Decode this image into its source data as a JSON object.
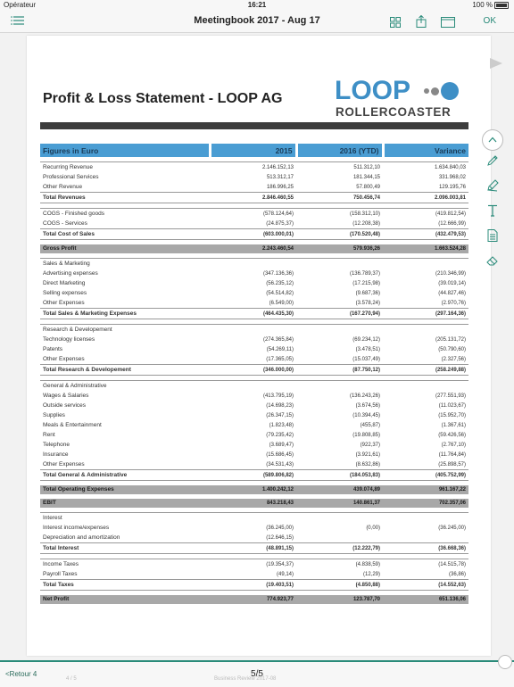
{
  "status": {
    "carrier": "Opérateur",
    "time": "16:21",
    "battery": "100 %"
  },
  "nav": {
    "title": "Meetingbook 2017 - Aug 17",
    "ok": "OK"
  },
  "doc": {
    "title": "Profit & Loss Statement - LOOP AG",
    "logo_loop": "LOOP",
    "logo_sub": "ROLLERCOASTER",
    "columns": [
      "Figures in Euro",
      "2015",
      "2016 (YTD)",
      "Variance"
    ],
    "rows": [
      {
        "type": "spacer"
      },
      {
        "type": "first",
        "cells": [
          "Recurring Revenue",
          "2.146.152,13",
          "511.312,10",
          "1.634.840,03"
        ]
      },
      {
        "type": "row",
        "cells": [
          "Professional Services",
          "513.312,17",
          "181.344,15",
          "331.968,02"
        ]
      },
      {
        "type": "row",
        "cells": [
          "Other Revenue",
          "186.996,25",
          "57.800,49",
          "129.195,76"
        ]
      },
      {
        "type": "total",
        "cells": [
          "Total Revenues",
          "2.846.460,55",
          "750.456,74",
          "2.096.003,81"
        ]
      },
      {
        "type": "spacer"
      },
      {
        "type": "first",
        "cells": [
          "COGS - Finished goods",
          "(578.124,64)",
          "(158.312,10)",
          "(419.812,54)"
        ]
      },
      {
        "type": "row",
        "cells": [
          "COGS - Services",
          "(24.875,37)",
          "(12.208,38)",
          "(12.666,99)"
        ]
      },
      {
        "type": "total",
        "cells": [
          "Total Cost of Sales",
          "(603.000,01)",
          "(170.520,48)",
          "(432.479,53)"
        ]
      },
      {
        "type": "spacer"
      },
      {
        "type": "highlight",
        "cells": [
          "Gross Profit",
          "2.243.460,54",
          "579.936,26",
          "1.663.524,28"
        ]
      },
      {
        "type": "spacer"
      },
      {
        "type": "first",
        "cells": [
          "Sales & Marketing",
          "",
          "",
          ""
        ]
      },
      {
        "type": "row",
        "cells": [
          "Advertising expenses",
          "(347.136,36)",
          "(136.789,37)",
          "(210.346,99)"
        ]
      },
      {
        "type": "row",
        "cells": [
          "Direct Marketing",
          "(56.235,12)",
          "(17.215,98)",
          "(39.019,14)"
        ]
      },
      {
        "type": "row",
        "cells": [
          "Selling expenses",
          "(54.514,82)",
          "(9.687,36)",
          "(44.827,46)"
        ]
      },
      {
        "type": "row",
        "cells": [
          "Other Expenses",
          "(6.549,00)",
          "(3.578,24)",
          "(2.970,76)"
        ]
      },
      {
        "type": "total",
        "cells": [
          "Total Sales & Marketing Expenses",
          "(464.435,30)",
          "(167.270,94)",
          "(297.164,36)"
        ]
      },
      {
        "type": "spacer"
      },
      {
        "type": "first",
        "cells": [
          "Research & Developement",
          "",
          "",
          ""
        ]
      },
      {
        "type": "row",
        "cells": [
          "Technology licenses",
          "(274.365,84)",
          "(69.234,12)",
          "(205.131,72)"
        ]
      },
      {
        "type": "row",
        "cells": [
          "Patents",
          "(54.269,11)",
          "(3.478,51)",
          "(50.790,60)"
        ]
      },
      {
        "type": "row",
        "cells": [
          "Other Expenses",
          "(17.365,05)",
          "(15.037,49)",
          "(2.327,56)"
        ]
      },
      {
        "type": "total",
        "cells": [
          "Total Research & Developement",
          "(346.000,00)",
          "(87.750,12)",
          "(258.249,88)"
        ]
      },
      {
        "type": "spacer"
      },
      {
        "type": "first",
        "cells": [
          "General & Administrative",
          "",
          "",
          ""
        ]
      },
      {
        "type": "row",
        "cells": [
          "Wages & Salaries",
          "(413.795,19)",
          "(136.243,26)",
          "(277.551,93)"
        ]
      },
      {
        "type": "row",
        "cells": [
          "Outside services",
          "(14.698,23)",
          "(3.674,56)",
          "(11.023,67)"
        ]
      },
      {
        "type": "row",
        "cells": [
          "Supplies",
          "(26.347,15)",
          "(10.394,45)",
          "(15.952,70)"
        ]
      },
      {
        "type": "row",
        "cells": [
          "Meals & Entertainment",
          "(1.823,48)",
          "(455,87)",
          "(1.367,61)"
        ]
      },
      {
        "type": "row",
        "cells": [
          "Rent",
          "(79.235,42)",
          "(19.808,85)",
          "(59.426,56)"
        ]
      },
      {
        "type": "row",
        "cells": [
          "Telephone",
          "(3.689,47)",
          "(922,37)",
          "(2.767,10)"
        ]
      },
      {
        "type": "row",
        "cells": [
          "Insurance",
          "(15.686,45)",
          "(3.921,61)",
          "(11.764,84)"
        ]
      },
      {
        "type": "row",
        "cells": [
          "Other Expenses",
          "(34.531,43)",
          "(8.632,86)",
          "(25.898,57)"
        ]
      },
      {
        "type": "total",
        "cells": [
          "Total General & Administrative",
          "(589.806,82)",
          "(184.053,83)",
          "(405.752,99)"
        ]
      },
      {
        "type": "spacer"
      },
      {
        "type": "highlight",
        "cells": [
          "Total Operating Expenses",
          "1.400.242,12",
          "439.074,89",
          "961.167,22"
        ]
      },
      {
        "type": "spacer"
      },
      {
        "type": "highlight",
        "cells": [
          "EBIT",
          "843.218,43",
          "140.861,37",
          "702.357,06"
        ]
      },
      {
        "type": "spacer"
      },
      {
        "type": "first",
        "cells": [
          "Interest",
          "",
          "",
          ""
        ]
      },
      {
        "type": "row",
        "cells": [
          "Interest income/expenses",
          "(36.245,00)",
          "(0,00)",
          "(36.245,00)"
        ]
      },
      {
        "type": "row",
        "cells": [
          "Depreciation and amortization",
          "(12.646,15)",
          "",
          ""
        ]
      },
      {
        "type": "total",
        "cells": [
          "Total Interest",
          "(48.891,15)",
          "(12.222,79)",
          "(36.668,36)"
        ]
      },
      {
        "type": "spacer"
      },
      {
        "type": "first",
        "cells": [
          "Income Taxes",
          "(19.354,37)",
          "(4.838,59)",
          "(14.515,78)"
        ]
      },
      {
        "type": "row",
        "cells": [
          "Payroll Taxes",
          "(49,14)",
          "(12,29)",
          "(36,86)"
        ]
      },
      {
        "type": "total",
        "cells": [
          "Total Taxes",
          "(19.403,51)",
          "(4.850,88)",
          "(14.552,63)"
        ]
      },
      {
        "type": "spacer"
      },
      {
        "type": "highlight",
        "cells": [
          "Net Profit",
          "774.923,77",
          "123.787,70",
          "651.136,06"
        ]
      }
    ]
  },
  "footer": {
    "back": "<Retour 4",
    "page": "5/5",
    "ghost": "Business Review 2017-08",
    "ghost2": "4 / 5"
  },
  "icons": [
    "list-icon",
    "grid-icon",
    "share-icon",
    "window-icon",
    "chevron-up-icon",
    "pencil-icon",
    "pen-icon",
    "text-icon",
    "note-icon",
    "eraser-icon"
  ]
}
